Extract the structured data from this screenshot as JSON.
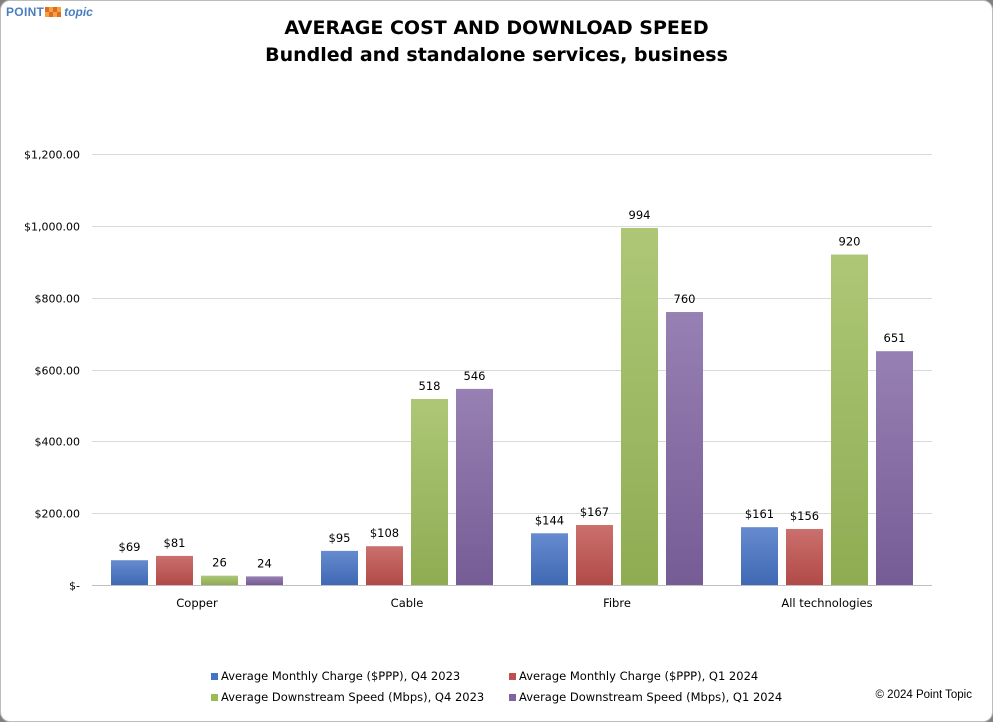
{
  "logo": {
    "word1": "POINT",
    "word2": "topic"
  },
  "title": "AVERAGE COST AND DOWNLOAD SPEED",
  "subtitle": "Bundled and standalone services, business",
  "copyright": "© 2024 Point Topic",
  "chart_data": {
    "type": "bar",
    "title": "AVERAGE COST AND DOWNLOAD SPEED",
    "subtitle": "Bundled and standalone services, business",
    "categories": [
      "Copper",
      "Cable",
      "Fibre",
      "All technologies"
    ],
    "ylim": [
      0,
      1200
    ],
    "yticks": [
      0,
      200,
      400,
      600,
      800,
      1000,
      1200
    ],
    "ytick_labels": [
      "$-",
      "$200.00",
      "$400.00",
      "$600.00",
      "$800.00",
      "$1,000.00",
      "$1,200.00"
    ],
    "grid": true,
    "legend_position": "bottom",
    "series": [
      {
        "name": "Average Monthly Charge ($PPP), Q4 2023",
        "color": "#4472c4",
        "values": [
          69,
          95,
          144,
          161
        ],
        "labels": [
          "$69",
          "$95",
          "$144",
          "$161"
        ]
      },
      {
        "name": "Average Monthly Charge ($PPP), Q1 2024",
        "color": "#c0504d",
        "values": [
          81,
          108,
          167,
          156
        ],
        "labels": [
          "$81",
          "$108",
          "$167",
          "$156"
        ]
      },
      {
        "name": "Average Downstream Speed (Mbps), Q4 2023",
        "color": "#9bbb59",
        "values": [
          26,
          518,
          994,
          920
        ],
        "labels": [
          "26",
          "518",
          "994",
          "920"
        ]
      },
      {
        "name": "Average Downstream Speed (Mbps), Q1 2024",
        "color": "#8064a2",
        "values": [
          24,
          546,
          760,
          651
        ],
        "labels": [
          "24",
          "546",
          "760",
          "651"
        ]
      }
    ]
  }
}
